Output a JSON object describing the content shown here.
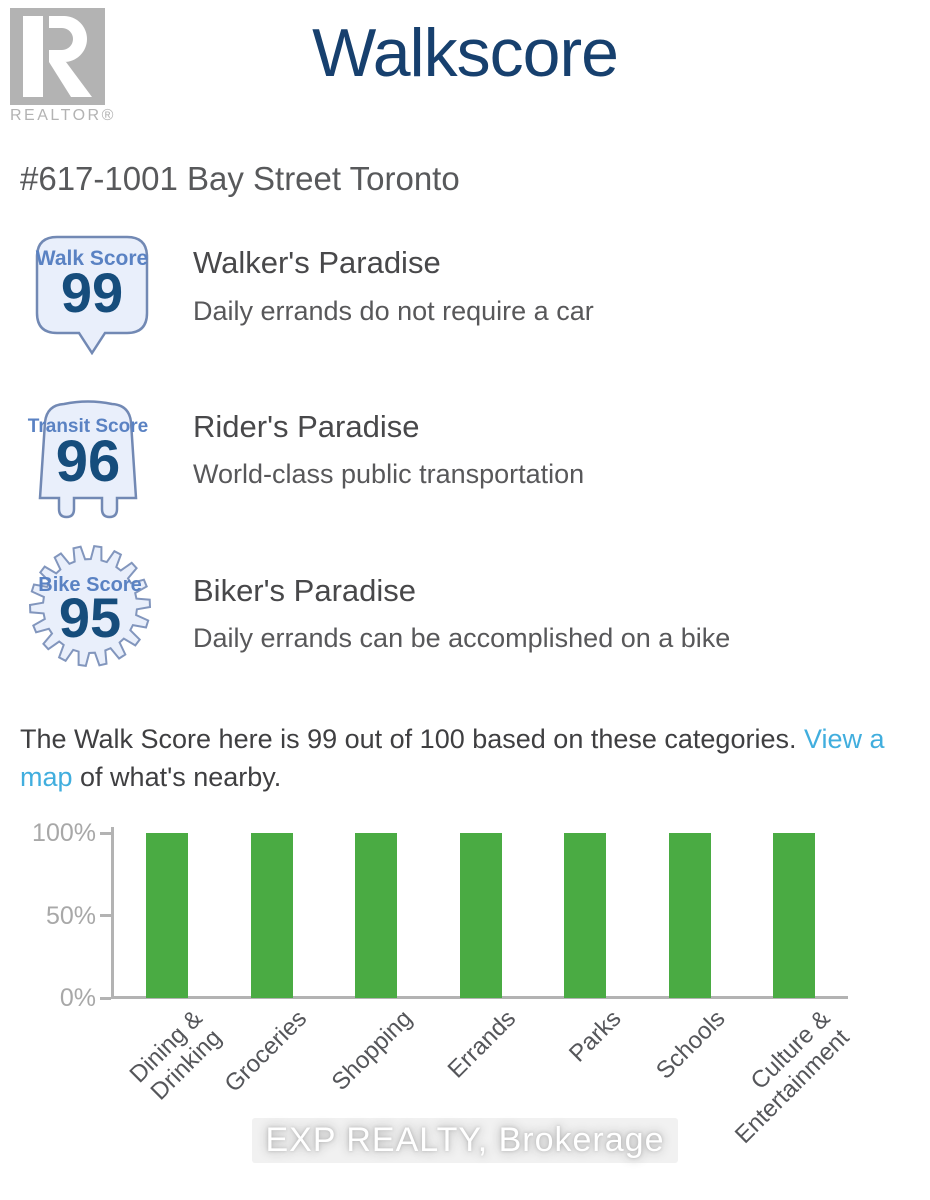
{
  "header": {
    "title": "Walkscore",
    "logo_text": "REALTOR®"
  },
  "address": "#617-1001 Bay Street Toronto",
  "scores": [
    {
      "label": "Walk Score",
      "score": "99",
      "heading": "Walker's Paradise",
      "description": "Daily errands do not require a car"
    },
    {
      "label": "Transit Score",
      "score": "96",
      "heading": "Rider's Paradise",
      "description": "World-class public transportation"
    },
    {
      "label": "Bike Score",
      "score": "95",
      "heading": "Biker's Paradise",
      "description": "Daily errands can be accomplished on a bike"
    }
  ],
  "paragraph": {
    "before_link": "The Walk Score here is 99 out of 100 based on these categories. ",
    "link": "View a map",
    "after_link": " of what's nearby."
  },
  "chart_data": {
    "type": "bar",
    "title": "",
    "categories": [
      "Dining &\nDrinking",
      "Groceries",
      "Shopping",
      "Errands",
      "Parks",
      "Schools",
      "Culture &\nEntertainment"
    ],
    "values": [
      100,
      100,
      100,
      100,
      100,
      100,
      100
    ],
    "xlabel": "",
    "ylabel": "",
    "ylim": [
      0,
      100
    ],
    "yticks": [
      {
        "value": 0,
        "label": "0%"
      },
      {
        "value": 50,
        "label": "50%"
      },
      {
        "value": 100,
        "label": "100%"
      }
    ],
    "grid": false,
    "legend": "none",
    "bar_color": "#4aab43"
  },
  "watermark": "EXP REALTY, Brokerage",
  "colors": {
    "title": "#17406e",
    "address": "#58595b",
    "heading": "#48484a",
    "desc": "#58585a",
    "paragraph": "#3f3f41",
    "link": "#41aede",
    "logo": "#b3b3b3",
    "badge-fill": "#e9effb",
    "badge-border": "#7289b4",
    "badge-label": "#5a82c3",
    "badge-number": "#164d7c",
    "bar": "#4aab43",
    "axis": "#b3b3b3",
    "ytick": "#a8a8a8",
    "xlabel": "#55565a"
  }
}
